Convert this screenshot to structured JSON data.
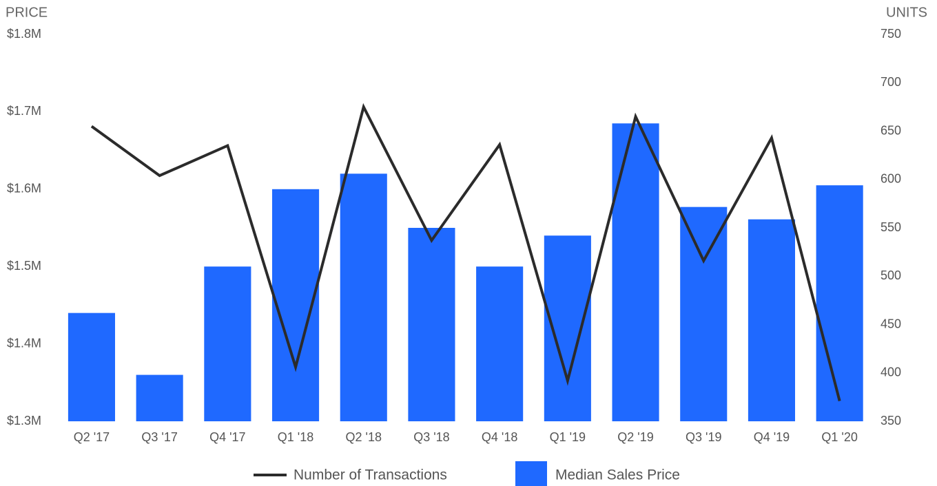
{
  "chart_data": {
    "type": "bar_line",
    "y_axis_label": "PRICE",
    "y2_axis_label": "UNITS",
    "categories": [
      "Q2 '17",
      "Q3 '17",
      "Q4 '17",
      "Q1 '18",
      "Q2 '18",
      "Q3 '18",
      "Q4 '18",
      "Q1 '19",
      "Q2 '19",
      "Q3 '19",
      "Q4 '19",
      "Q1 '20"
    ],
    "series": [
      {
        "name": "Number of Transactions",
        "color": "#2b2b2b",
        "axis": "y2",
        "type": "line",
        "values": [
          655,
          604,
          635,
          406,
          675,
          537,
          636,
          392,
          665,
          516,
          643,
          371
        ]
      },
      {
        "name": "Median Sales Price",
        "color": "#1f69ff",
        "type": "bar",
        "values": [
          1440000,
          1360000,
          1500000,
          1600000,
          1620000,
          1550000,
          1500000,
          1540000,
          1685000,
          1577000,
          1561000,
          1605000
        ]
      }
    ],
    "ylim": [
      1300000,
      1800000
    ],
    "yticks": [
      {
        "value": 1300000,
        "label": "$1.3M"
      },
      {
        "value": 1400000,
        "label": "$1.4M"
      },
      {
        "value": 1500000,
        "label": "$1.5M"
      },
      {
        "value": 1600000,
        "label": "$1.6M"
      },
      {
        "value": 1700000,
        "label": "$1.7M"
      },
      {
        "value": 1800000,
        "label": "$1.8M"
      }
    ],
    "y2lim": [
      350,
      750
    ],
    "y2ticks": [
      350,
      400,
      450,
      500,
      550,
      600,
      650,
      700,
      750
    ],
    "grid": false,
    "legend": "bottom"
  }
}
